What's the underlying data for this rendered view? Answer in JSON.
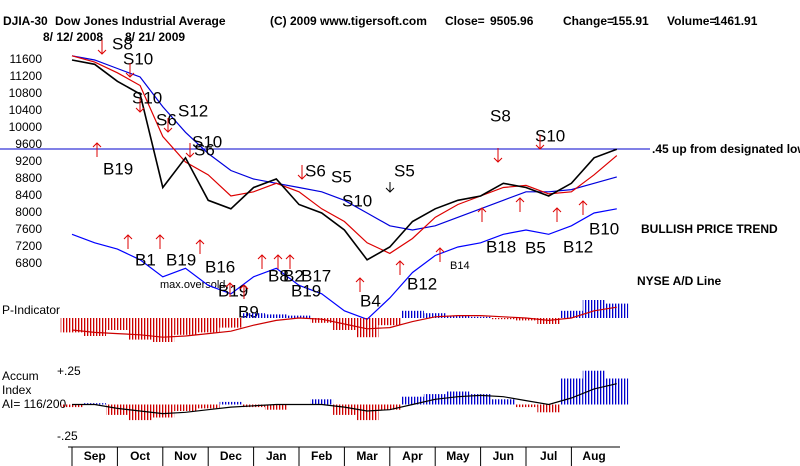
{
  "header": {
    "symbol": "DJIA-30",
    "name": "Dow Jones Industrial Average",
    "copyright": "(C) 2009 www.tigersoft.com",
    "close_label": "Close=",
    "close": 9505.96,
    "change_label": "Change=",
    "change": 155.91,
    "volume_label": "Volume=",
    "volume": 1461.91,
    "start_date": "8/ 12/ 2008",
    "end_date": "8/ 21/ 2009"
  },
  "chart_data": [
    {
      "type": "line",
      "categories": [
        null,
        "Sep",
        null,
        "Oct",
        null,
        "Nov",
        null,
        "Dec",
        null,
        "Jan",
        null,
        "Feb",
        null,
        "Mar",
        null,
        "Apr",
        null,
        "May",
        null,
        "Jun",
        null,
        "Jul",
        null,
        "Aug",
        null
      ],
      "ylim": [
        5200,
        12000
      ],
      "yticks": [
        11600,
        11200,
        10800,
        10400,
        10000,
        9600,
        9200,
        8800,
        8400,
        8000,
        7600,
        7200,
        6800
      ],
      "series": [
        {
          "color": "#000000",
          "values": [
            11600,
            11500,
            11100,
            10800,
            8600,
            9300,
            8300,
            8100,
            8600,
            8800,
            8200,
            8000,
            7600,
            6900,
            7200,
            7800,
            8100,
            8300,
            8400,
            8700,
            8600,
            8400,
            8700,
            9300,
            9500
          ]
        },
        {
          "color": "#dd0000",
          "values": [
            11700,
            11550,
            11300,
            11000,
            9800,
            9200,
            8900,
            8400,
            8500,
            8700,
            8500,
            8100,
            7800,
            7300,
            7050,
            7400,
            7900,
            8200,
            8400,
            8600,
            8650,
            8450,
            8500,
            8900,
            9350
          ]
        },
        {
          "color": "#0000dd",
          "values": [
            11700,
            11600,
            11400,
            11200,
            10500,
            9900,
            9400,
            9000,
            8800,
            8700,
            8600,
            8500,
            8300,
            8000,
            7700,
            7600,
            7700,
            7900,
            8100,
            8300,
            8500,
            8500,
            8550,
            8700,
            8850
          ]
        },
        {
          "name": "NYSE A/D Line",
          "color": "#0000ff",
          "values": [
            7500,
            7300,
            7150,
            6900,
            6500,
            6700,
            6300,
            6100,
            6500,
            6700,
            6300,
            6100,
            5700,
            5500,
            6000,
            6600,
            7000,
            7200,
            7300,
            7500,
            7600,
            7500,
            7700,
            8000,
            8100
          ]
        }
      ],
      "reference_line_color": "#0000cc",
      "signals": [
        "S8",
        "S10",
        "S10",
        "S6",
        "S12",
        "S10",
        "S6",
        "B19",
        "S6",
        "S5",
        "S10",
        "S5",
        "S8",
        "S10",
        "B1",
        "B19",
        "B16",
        "B19",
        "B8",
        "B2",
        "B17",
        "B19",
        "B9",
        "B4",
        "B12",
        "B14",
        "B18",
        "B5",
        "B12",
        "B10"
      ],
      "annotations": [
        ".45 up from designated low",
        "BULLISH PRICE TREND",
        "max.oversold"
      ]
    },
    {
      "type": "bar",
      "title": "P-Indicator",
      "ylim": [
        -250,
        250
      ],
      "series": [
        {
          "color_positive": "#0000cc",
          "color_negative": "#cc0000",
          "values": [
            -120,
            -150,
            -100,
            -180,
            -200,
            -140,
            -120,
            -80,
            40,
            30,
            20,
            -40,
            -100,
            -160,
            -60,
            60,
            40,
            20,
            10,
            -10,
            -20,
            -50,
            60,
            150,
            120
          ]
        },
        {
          "color": "#cc0000",
          "values": [
            -100,
            -120,
            -130,
            -140,
            -160,
            -150,
            -130,
            -110,
            -60,
            -20,
            0,
            -10,
            -50,
            -90,
            -80,
            -30,
            10,
            20,
            20,
            10,
            0,
            -20,
            0,
            60,
            90
          ]
        }
      ]
    },
    {
      "type": "bar",
      "title": "Accum",
      "subtitle": "Index",
      "note": "AI= 116/200",
      "ylim": [
        -0.3,
        0.3
      ],
      "yticks": [
        {
          "value": 0.25,
          "label": "+.25"
        },
        {
          "value": -0.25,
          "label": "-.25"
        }
      ],
      "series": [
        {
          "color_positive": "#0000cc",
          "color_negative": "#cc0000",
          "values": [
            -0.02,
            0.01,
            -0.08,
            -0.12,
            -0.1,
            -0.05,
            -0.03,
            0.02,
            -0.02,
            -0.04,
            0.0,
            0.04,
            -0.08,
            -0.12,
            -0.04,
            0.06,
            0.08,
            0.1,
            0.08,
            0.04,
            -0.02,
            -0.06,
            0.2,
            0.26,
            0.2
          ]
        },
        {
          "color": "#000000",
          "values": [
            0.0,
            0.0,
            -0.03,
            -0.05,
            -0.07,
            -0.06,
            -0.04,
            -0.02,
            -0.01,
            0,
            0,
            0,
            -0.02,
            -0.05,
            -0.04,
            0.0,
            0.04,
            0.06,
            0.07,
            0.06,
            0.03,
            0.0,
            0.05,
            0.12,
            0.16
          ]
        }
      ]
    }
  ]
}
